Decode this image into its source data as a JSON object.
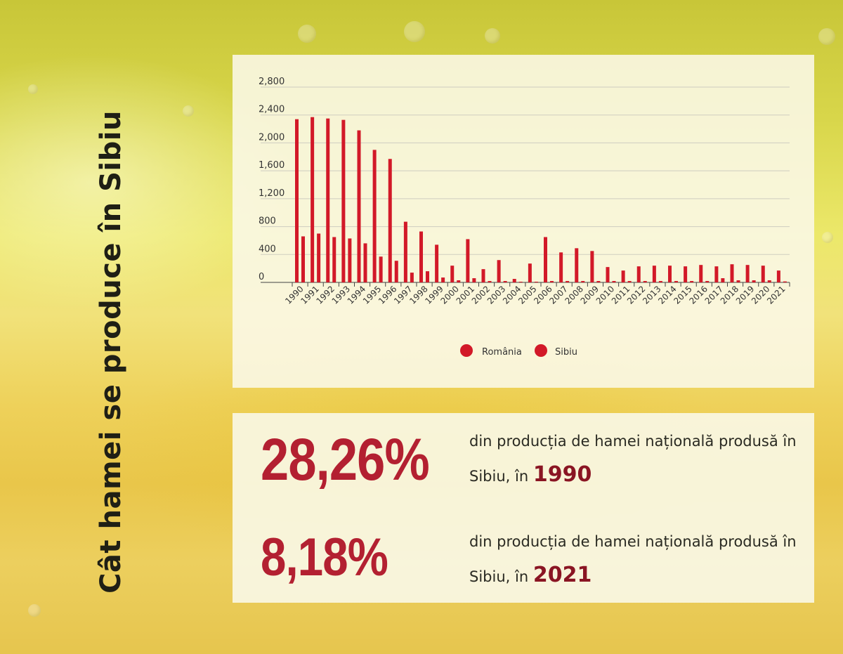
{
  "title": "Cât hamei se produce în Sibiu",
  "colors": {
    "romania": "#d21928",
    "sibiu": "#d21928",
    "stat_value": "#b32031",
    "stat_year": "#8a1523"
  },
  "chart_data": {
    "type": "bar",
    "title": "",
    "xlabel": "",
    "ylabel": "",
    "ylim": [
      0,
      2800
    ],
    "yticks": [
      0,
      400,
      800,
      1200,
      1600,
      2000,
      2400,
      2800
    ],
    "ytick_labels": [
      "0",
      "400",
      "800",
      "1,200",
      "1,600",
      "2,000",
      "2,400",
      "2,800"
    ],
    "grid": true,
    "legend_position": "bottom-center",
    "categories": [
      "1990",
      "1991",
      "1992",
      "1993",
      "1994",
      "1995",
      "1996",
      "1997",
      "1998",
      "1999",
      "2000",
      "2001",
      "2002",
      "2003",
      "2004",
      "2005",
      "2006",
      "2007",
      "2008",
      "2009",
      "2010",
      "2011",
      "2012",
      "2013",
      "2014",
      "2015",
      "2016",
      "2017",
      "2018",
      "2019",
      "2020",
      "2021"
    ],
    "series": [
      {
        "name": "România",
        "values": [
          2340,
          2370,
          2350,
          2330,
          2180,
          1900,
          1770,
          870,
          730,
          540,
          240,
          620,
          190,
          320,
          50,
          270,
          650,
          430,
          490,
          450,
          220,
          170,
          230,
          240,
          240,
          230,
          250,
          230,
          260,
          250,
          240,
          170
        ]
      },
      {
        "name": "Sibiu",
        "values": [
          660,
          700,
          650,
          630,
          560,
          370,
          310,
          140,
          160,
          70,
          30,
          60,
          20,
          20,
          10,
          10,
          20,
          20,
          20,
          20,
          20,
          20,
          20,
          20,
          20,
          20,
          20,
          60,
          30,
          30,
          30,
          14
        ]
      }
    ]
  },
  "stats": [
    {
      "value": "28,26%",
      "text": "din producția de hamei națională produsă în Sibiu, în",
      "year": "1990"
    },
    {
      "value": "8,18%",
      "text": "din producția de hamei națională produsă în Sibiu, în",
      "year": "2021"
    }
  ]
}
